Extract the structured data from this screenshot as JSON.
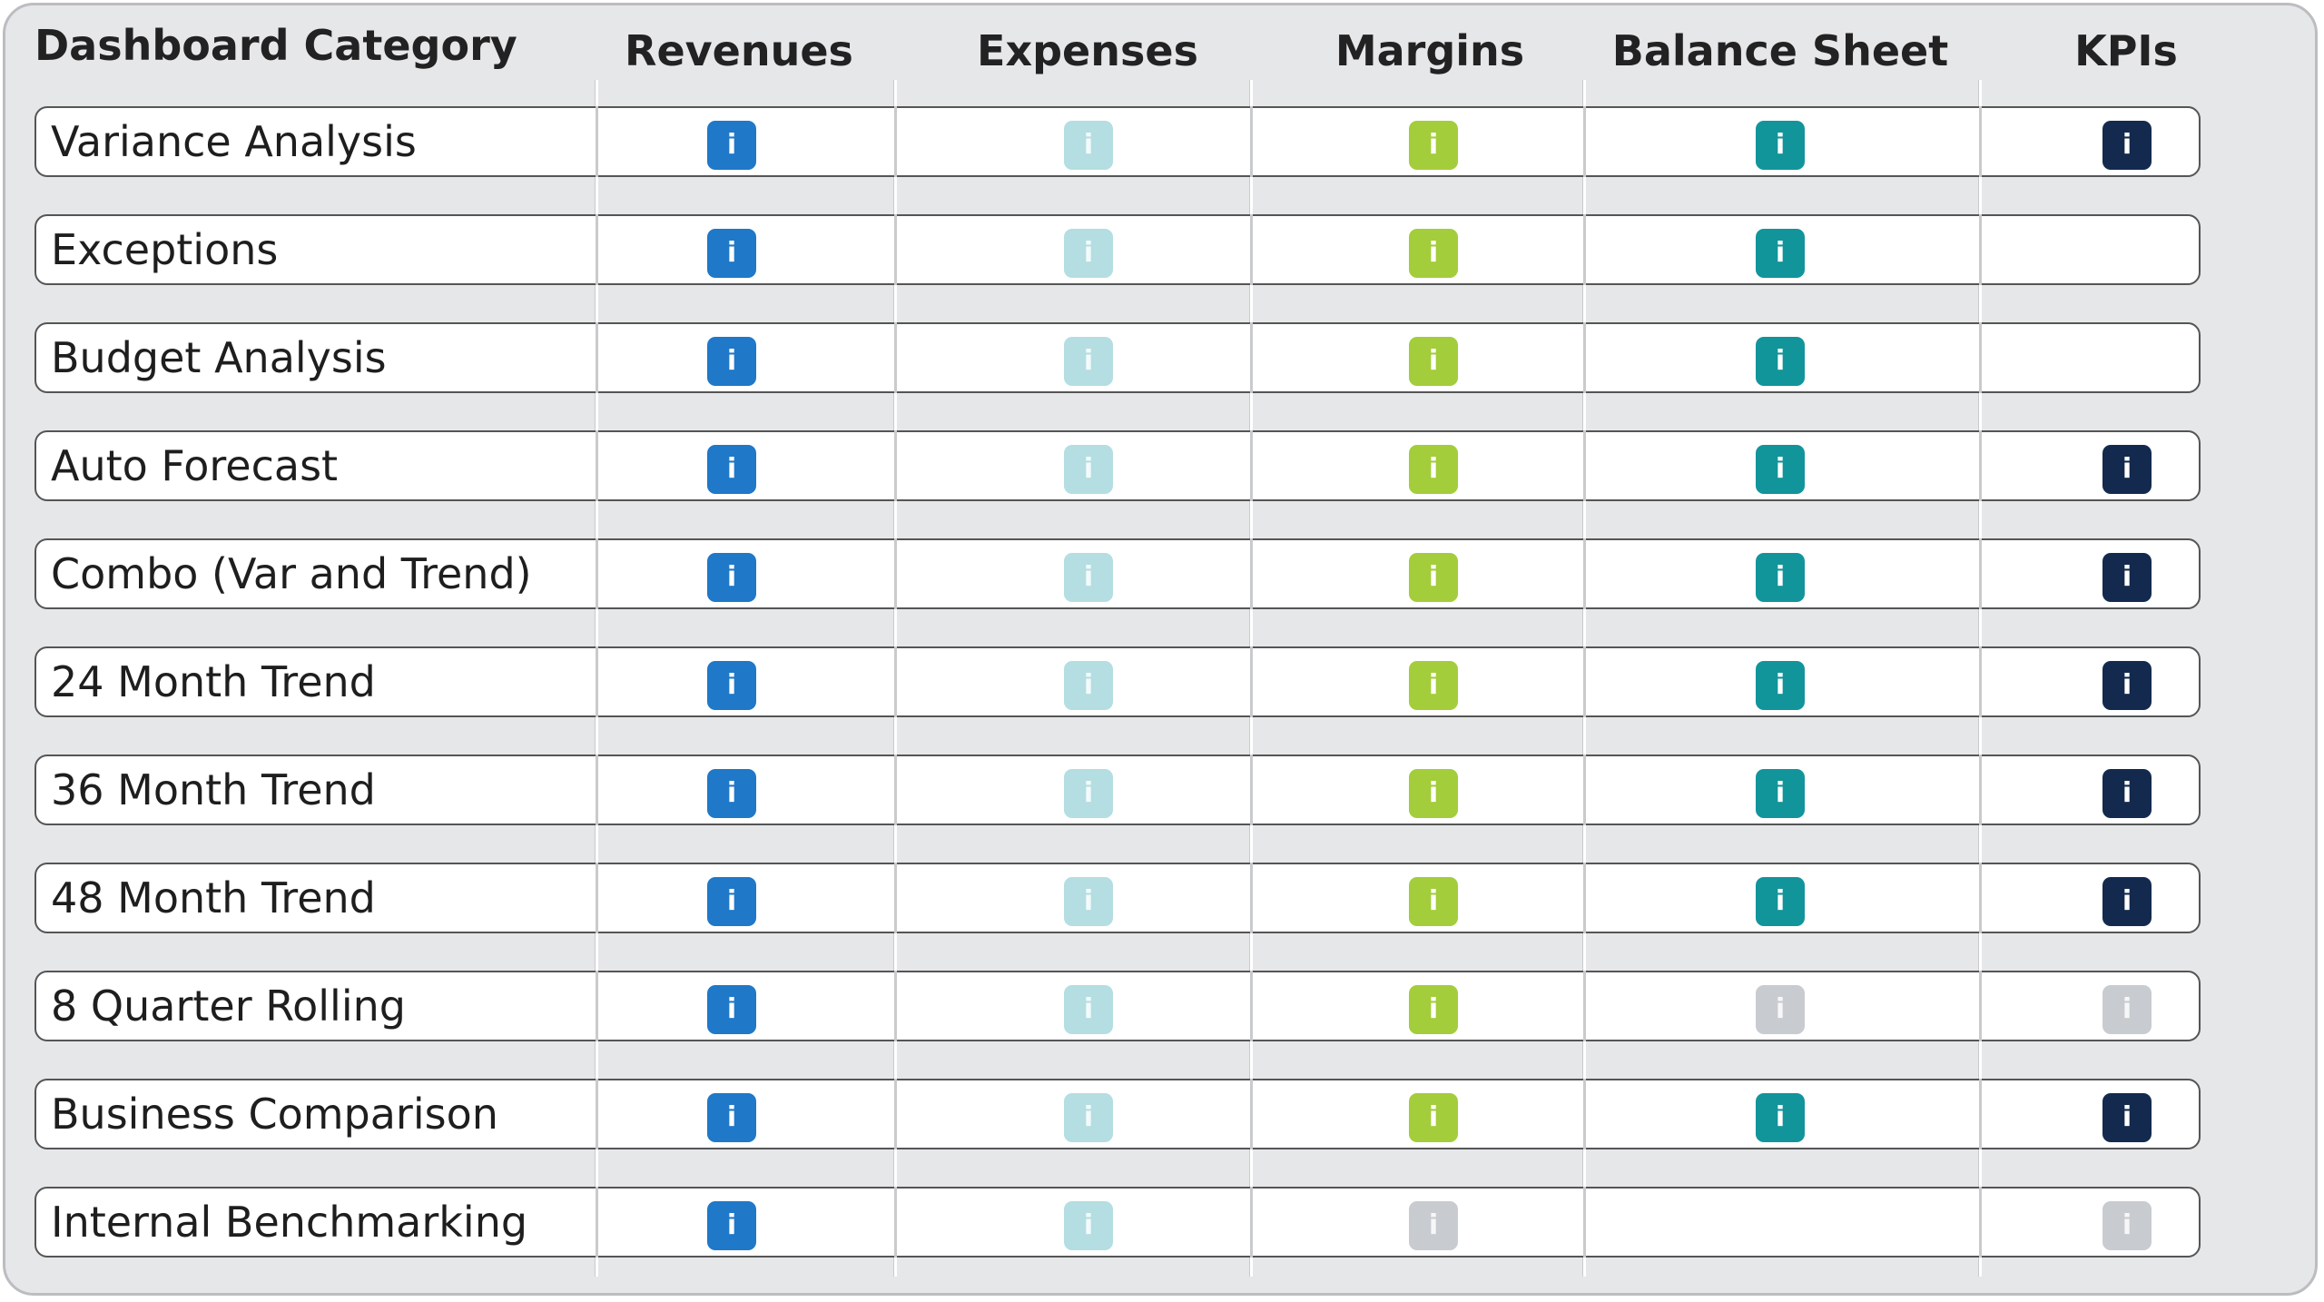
{
  "header": {
    "category": "Dashboard Category",
    "columns": [
      "Revenues",
      "Expenses",
      "Margins",
      "Balance Sheet",
      "KPIs"
    ]
  },
  "icon_glyph": "i",
  "icon_colors": {
    "revenues": "#1f78c8",
    "expenses": "#b4dee1",
    "margins": "#a3cd3a",
    "balance": "#12949b",
    "kpis": "#132a4e",
    "inactive": "#c8cbd0"
  },
  "rows": [
    {
      "label": "Variance Analysis",
      "cells": [
        "revenues",
        "expenses",
        "margins",
        "balance",
        "kpis"
      ]
    },
    {
      "label": "Exceptions",
      "cells": [
        "revenues",
        "expenses",
        "margins",
        "balance",
        null
      ]
    },
    {
      "label": "Budget Analysis",
      "cells": [
        "revenues",
        "expenses",
        "margins",
        "balance",
        null
      ]
    },
    {
      "label": "Auto Forecast",
      "cells": [
        "revenues",
        "expenses",
        "margins",
        "balance",
        "kpis"
      ]
    },
    {
      "label": "Combo (Var and Trend)",
      "cells": [
        "revenues",
        "expenses",
        "margins",
        "balance",
        "kpis"
      ]
    },
    {
      "label": "24 Month Trend",
      "cells": [
        "revenues",
        "expenses",
        "margins",
        "balance",
        "kpis"
      ]
    },
    {
      "label": "36 Month Trend",
      "cells": [
        "revenues",
        "expenses",
        "margins",
        "balance",
        "kpis"
      ]
    },
    {
      "label": "48 Month Trend",
      "cells": [
        "revenues",
        "expenses",
        "margins",
        "balance",
        "kpis"
      ]
    },
    {
      "label": "8 Quarter Rolling",
      "cells": [
        "revenues",
        "expenses",
        "margins",
        "inactive",
        "inactive"
      ]
    },
    {
      "label": "Business Comparison",
      "cells": [
        "revenues",
        "expenses",
        "margins",
        "balance",
        "kpis"
      ]
    },
    {
      "label": "Internal Benchmarking",
      "cells": [
        "revenues",
        "expenses",
        "inactive",
        null,
        "inactive"
      ]
    }
  ]
}
